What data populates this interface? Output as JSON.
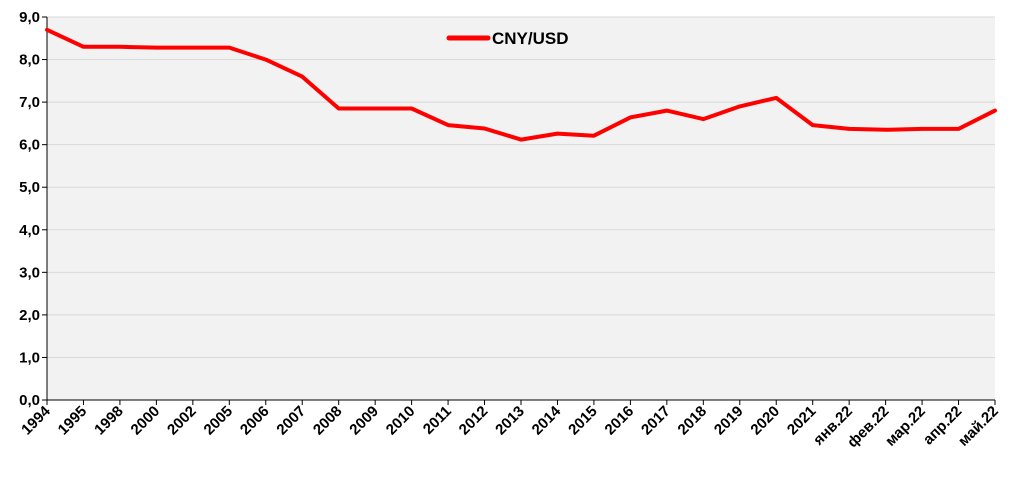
{
  "chart_data": {
    "type": "line",
    "categories": [
      "1994",
      "1995",
      "1998",
      "2000",
      "2002",
      "2005",
      "2006",
      "2007",
      "2008",
      "2009",
      "2010",
      "2011",
      "2012",
      "2013",
      "2014",
      "2015",
      "2016",
      "2017",
      "2018",
      "2019",
      "2020",
      "2021",
      "янв.22",
      "фев.22",
      "мар.22",
      "апр.22",
      "май.22"
    ],
    "series": [
      {
        "name": "CNY/USD",
        "color": "#ff0000",
        "values": [
          8.7,
          8.3,
          8.3,
          8.28,
          8.28,
          8.28,
          8.0,
          7.6,
          6.85,
          6.85,
          6.85,
          6.46,
          6.38,
          6.12,
          6.26,
          6.21,
          6.64,
          6.8,
          6.6,
          6.9,
          7.1,
          6.46,
          6.37,
          6.35,
          6.37,
          6.37,
          6.8
        ]
      }
    ],
    "ylim": [
      0,
      9
    ],
    "yticks": [
      "0,0",
      "1,0",
      "2,0",
      "3,0",
      "4,0",
      "5,0",
      "6,0",
      "7,0",
      "8,0",
      "9,0"
    ],
    "grid": true,
    "legend_position": "top-center",
    "plot_background": "#f2f2f2"
  }
}
